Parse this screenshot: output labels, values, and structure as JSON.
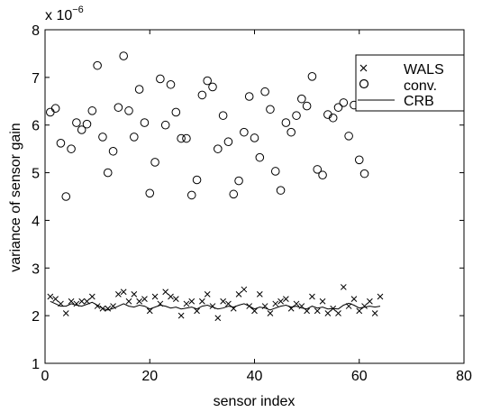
{
  "chart_data": {
    "type": "scatter",
    "xlabel": "sensor index",
    "ylabel": "variance of sensor gain",
    "y_multiplier_base": "x 10",
    "y_multiplier_exp": "−6",
    "xlim": [
      0,
      80
    ],
    "ylim": [
      1,
      8
    ],
    "xticks": [
      0,
      20,
      40,
      60,
      80
    ],
    "yticks": [
      1,
      2,
      3,
      4,
      5,
      6,
      7,
      8
    ],
    "legend_position": "top-right",
    "grid": false,
    "series": [
      {
        "name": "WALS",
        "marker": "x",
        "x": [
          1,
          2,
          3,
          4,
          5,
          6,
          7,
          8,
          9,
          10,
          11,
          12,
          13,
          14,
          15,
          16,
          17,
          18,
          19,
          20,
          21,
          22,
          23,
          24,
          25,
          26,
          27,
          28,
          29,
          30,
          31,
          32,
          33,
          34,
          35,
          36,
          37,
          38,
          39,
          40,
          41,
          42,
          43,
          44,
          45,
          46,
          47,
          48,
          49,
          50,
          51,
          52,
          53,
          54,
          55,
          56,
          57,
          58,
          59,
          60,
          61,
          62,
          63,
          64
        ],
        "y": [
          2.4,
          2.35,
          2.25,
          2.05,
          2.3,
          2.25,
          2.3,
          2.3,
          2.4,
          2.2,
          2.15,
          2.15,
          2.2,
          2.45,
          2.5,
          2.3,
          2.45,
          2.3,
          2.35,
          2.1,
          2.4,
          2.25,
          2.5,
          2.4,
          2.35,
          2.0,
          2.25,
          2.3,
          2.1,
          2.3,
          2.45,
          2.2,
          1.95,
          2.3,
          2.25,
          2.15,
          2.45,
          2.55,
          2.2,
          2.1,
          2.45,
          2.2,
          2.05,
          2.25,
          2.3,
          2.35,
          2.15,
          2.25,
          2.2,
          2.1,
          2.4,
          2.1,
          2.3,
          2.05,
          2.15,
          2.05,
          2.6,
          2.2,
          2.35,
          2.1,
          2.2,
          2.3,
          2.05,
          2.4
        ]
      },
      {
        "name": "conv.",
        "marker": "o",
        "x": [
          1,
          2,
          3,
          4,
          5,
          6,
          7,
          8,
          9,
          10,
          11,
          12,
          13,
          14,
          15,
          16,
          17,
          18,
          19,
          20,
          21,
          22,
          23,
          24,
          25,
          26,
          27,
          28,
          29,
          30,
          31,
          32,
          33,
          34,
          35,
          36,
          37,
          38,
          39,
          40,
          41,
          42,
          43,
          44,
          45,
          46,
          47,
          48,
          49,
          50,
          51,
          52,
          53,
          54,
          55,
          56,
          57,
          58,
          59,
          60,
          61
        ],
        "y": [
          6.27,
          6.35,
          5.62,
          4.5,
          5.5,
          6.05,
          5.9,
          6.02,
          6.3,
          7.25,
          5.75,
          5.0,
          5.45,
          6.37,
          7.45,
          6.3,
          5.75,
          6.75,
          6.05,
          4.57,
          5.22,
          6.97,
          6.0,
          6.85,
          6.27,
          5.72,
          5.72,
          4.53,
          4.85,
          6.63,
          6.93,
          6.8,
          5.5,
          6.2,
          5.65,
          4.55,
          4.83,
          5.85,
          6.6,
          5.73,
          5.32,
          6.7,
          6.33,
          5.03,
          4.63,
          6.05,
          5.85,
          6.2,
          6.55,
          6.4,
          7.02,
          5.07,
          4.95,
          6.22,
          6.15,
          6.37,
          6.47,
          5.77,
          6.42,
          5.27,
          4.98
        ]
      },
      {
        "name": "CRB",
        "marker": "line",
        "x": [
          1,
          2,
          3,
          4,
          5,
          6,
          7,
          8,
          9,
          10,
          11,
          12,
          13,
          14,
          15,
          16,
          17,
          18,
          19,
          20,
          21,
          22,
          23,
          24,
          25,
          26,
          27,
          28,
          29,
          30,
          31,
          32,
          33,
          34,
          35,
          36,
          37,
          38,
          39,
          40,
          41,
          42,
          43,
          44,
          45,
          46,
          47,
          48,
          49,
          50,
          51,
          52,
          53,
          54,
          55,
          56,
          57,
          58,
          59,
          60,
          61,
          62,
          63,
          64
        ],
        "y": [
          2.3,
          2.25,
          2.2,
          2.2,
          2.25,
          2.22,
          2.2,
          2.24,
          2.28,
          2.22,
          2.15,
          2.12,
          2.15,
          2.2,
          2.25,
          2.2,
          2.18,
          2.22,
          2.2,
          2.14,
          2.18,
          2.22,
          2.2,
          2.16,
          2.18,
          2.14,
          2.16,
          2.18,
          2.14,
          2.2,
          2.22,
          2.18,
          2.14,
          2.16,
          2.2,
          2.18,
          2.22,
          2.25,
          2.2,
          2.14,
          2.18,
          2.16,
          2.12,
          2.16,
          2.2,
          2.22,
          2.18,
          2.2,
          2.16,
          2.14,
          2.2,
          2.16,
          2.18,
          2.14,
          2.15,
          2.14,
          2.22,
          2.26,
          2.22,
          2.16,
          2.18,
          2.2,
          2.18,
          2.2
        ]
      }
    ]
  }
}
